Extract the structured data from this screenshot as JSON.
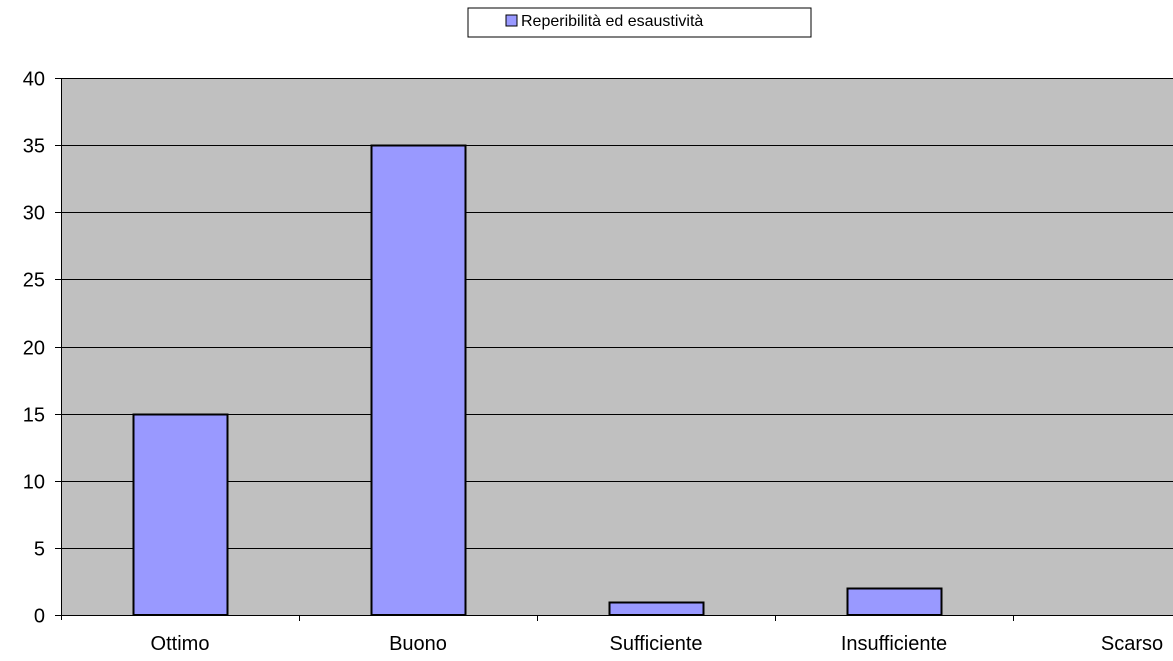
{
  "chart_data": {
    "type": "bar",
    "categories": [
      "Ottimo",
      "Buono",
      "Sufficiente",
      "Insufficiente",
      "Scarso"
    ],
    "series": [
      {
        "name": "Reperibilità ed esaustività",
        "values": [
          15,
          35,
          1,
          2,
          0
        ]
      }
    ],
    "ylim": [
      0,
      40
    ],
    "yticks": [
      0,
      5,
      10,
      15,
      20,
      25,
      30,
      35,
      40
    ],
    "grid": true,
    "legend_position": "top-center",
    "colors": {
      "plot_background": "#c0c0c0",
      "bar_fill": "#9999ff",
      "bar_stroke": "#000000",
      "gridline": "#000000"
    }
  }
}
